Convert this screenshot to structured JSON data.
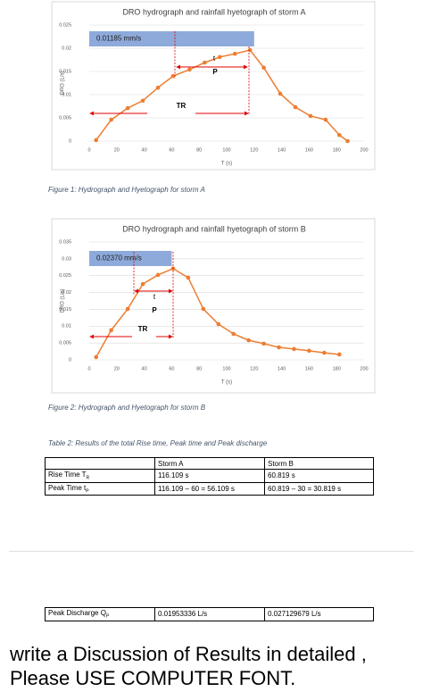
{
  "chart_data": [
    {
      "type": "line",
      "title": "DRO hydrograph and rainfall hyetograph of storm A",
      "xlabel": "T (s)",
      "ylabel": "DRO (L/s)",
      "x": [
        5,
        16,
        28,
        39,
        50,
        61,
        73,
        84,
        95,
        106,
        117,
        127,
        139,
        150,
        161,
        172,
        182,
        188
      ],
      "values": [
        0.0002,
        0.0046,
        0.0071,
        0.0087,
        0.0115,
        0.014,
        0.0154,
        0.0169,
        0.0181,
        0.0188,
        0.0196,
        0.0158,
        0.0102,
        0.0073,
        0.0054,
        0.0046,
        0.0013,
        0
      ],
      "color": "#ed7d31",
      "xlim": [
        0,
        200
      ],
      "xticks": [
        0,
        20,
        40,
        60,
        80,
        100,
        120,
        140,
        160,
        180,
        200
      ],
      "ylim": [
        0,
        0.025
      ],
      "yticks": [
        0,
        0.005,
        0.01,
        0.015,
        0.02,
        0.025
      ],
      "grid": true,
      "hyetograph": {
        "value": 0.01185,
        "value_label": "0.01185 mm/s",
        "x": [
          0,
          120
        ],
        "color": "#8eaadb"
      },
      "annotations": [
        "t",
        "P",
        "TR"
      ]
    },
    {
      "type": "line",
      "title": "DRO hydrograph and rainfall hyetograph of storm B",
      "xlabel": "T (s)",
      "ylabel": "DRO (L/s)",
      "x": [
        5,
        16,
        28,
        39,
        50,
        61,
        72,
        83,
        94,
        105,
        116,
        127,
        138,
        149,
        160,
        171,
        182
      ],
      "values": [
        0.0008,
        0.0088,
        0.0151,
        0.0225,
        0.0252,
        0.0271,
        0.0244,
        0.0151,
        0.0106,
        0.0077,
        0.0058,
        0.0048,
        0.0037,
        0.0032,
        0.0027,
        0.0021,
        0.0016
      ],
      "color": "#ed7d31",
      "xlim": [
        0,
        200
      ],
      "xticks": [
        0,
        20,
        40,
        60,
        80,
        100,
        120,
        140,
        160,
        180,
        200
      ],
      "ylim": [
        0,
        0.035
      ],
      "yticks": [
        0,
        0.005,
        0.01,
        0.015,
        0.02,
        0.025,
        0.03,
        0.035
      ],
      "grid": true,
      "hyetograph": {
        "value": 0.0237,
        "value_label": "0.02370 mm/s",
        "x": [
          0,
          60
        ],
        "color": "#8eaadb"
      },
      "annotations": [
        "t",
        "P",
        "TR"
      ]
    }
  ],
  "figure_captions": [
    "Figure 1: Hydrograph and Hyetograph for storm A",
    "Figure 2: Hydrograph and Hyetograph for storm B"
  ],
  "table": {
    "caption": "Table 2: Results of the total Rise time, Peak time and Peak discharge",
    "header": [
      "Storm A",
      "Storm B"
    ],
    "rows": [
      {
        "label": "Rise Time T",
        "label_sub": "R",
        "cells": [
          "116.109 s",
          "60.819 s"
        ]
      },
      {
        "label": "Peak Time t",
        "label_sub": "P",
        "cells": [
          "116.109 – 60 = 56.109 s",
          "60.819 – 30 = 30.819 s"
        ]
      }
    ],
    "discharge_row": {
      "label": "Peak Discharge Q",
      "label_sub": "P",
      "cells": [
        "0.01953336 L/s",
        "0.027129679 L/s"
      ]
    }
  },
  "question": [
    "write a Discussion of Results in detailed ,",
    "Please USE COMPUTER FONT."
  ]
}
